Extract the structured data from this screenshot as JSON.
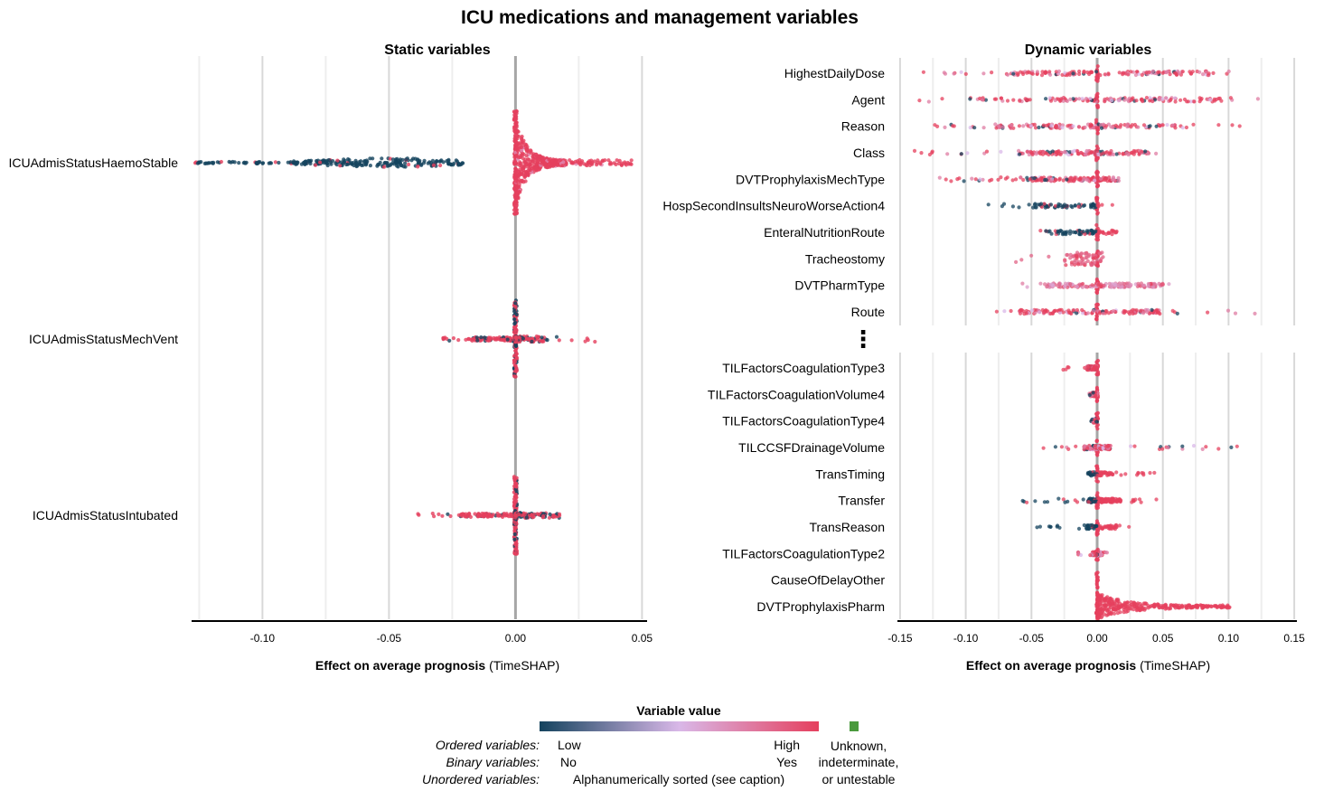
{
  "title": "ICU medications and management variables",
  "colors": {
    "low": "#14435e",
    "mid": "#d9b8e8",
    "high": "#e5405e",
    "unknown": "#4a9a3d",
    "zero_line": "#a6a6a6",
    "grid": "#e6e6e6"
  },
  "chart_data": [
    {
      "type": "scatter",
      "subtype": "beeswarm",
      "panel_title": "Static variables",
      "xlabel_bold": "Effect on average prognosis",
      "xlabel_rest": "(TimeSHAP)",
      "xlim": [
        -0.128,
        0.052
      ],
      "xticks": [
        -0.1,
        -0.05,
        0.0,
        0.05
      ],
      "xtick_labels": [
        "-0.10",
        "-0.05",
        "0.00",
        "0.05"
      ],
      "minor_grid": [
        -0.125,
        -0.075,
        -0.025,
        0.025
      ],
      "variables": [
        {
          "name": "ICUAdmisStatusHaemoStable",
          "range": [
            -0.127,
            0.046
          ],
          "bulk_neg": [
            -0.09,
            -0.02
          ],
          "bulk_pos": [
            0.0,
            0.02
          ],
          "low_side": "neg",
          "spread": 0.55,
          "stem": 0.6
        },
        {
          "name": "ICUAdmisStatusMechVent",
          "range": [
            -0.029,
            0.033
          ],
          "bulk_neg": [
            -0.018,
            0.0
          ],
          "bulk_pos": [
            0.0,
            0.012
          ],
          "low_side": "pos",
          "spread": 0.08,
          "stem": 0.45
        },
        {
          "name": "ICUAdmisStatusIntubated",
          "range": [
            -0.04,
            0.018
          ],
          "bulk_neg": [
            -0.022,
            0.0
          ],
          "bulk_pos": [
            0.0,
            0.012
          ],
          "low_side": "pos",
          "spread": 0.08,
          "stem": 0.45
        }
      ]
    },
    {
      "type": "scatter",
      "subtype": "beeswarm",
      "panel_title": "Dynamic variables",
      "xlabel_bold": "Effect on average prognosis",
      "xlabel_rest": "(TimeSHAP)",
      "xlim": [
        -0.152,
        0.152
      ],
      "xticks": [
        -0.15,
        -0.1,
        -0.05,
        0.0,
        0.05,
        0.1,
        0.15
      ],
      "xtick_labels": [
        "-0.15",
        "-0.10",
        "-0.05",
        "0.00",
        "0.05",
        "0.10",
        "0.15"
      ],
      "minor_grid": [
        -0.125,
        -0.075,
        -0.025,
        0.025,
        0.075,
        0.125
      ],
      "ellipsis": "⋮",
      "top_variables": [
        {
          "name": "HighestDailyDose",
          "range": [
            -0.145,
            0.11
          ],
          "bulk": [
            -0.07,
            0.09
          ]
        },
        {
          "name": "Agent",
          "range": [
            -0.14,
            0.138
          ],
          "bulk": [
            -0.09,
            0.095
          ]
        },
        {
          "name": "Reason",
          "range": [
            -0.13,
            0.115
          ],
          "bulk": [
            -0.08,
            0.06
          ]
        },
        {
          "name": "Class",
          "range": [
            -0.145,
            0.045
          ],
          "bulk": [
            -0.06,
            0.04
          ]
        },
        {
          "name": "DVTProphylaxisMechType",
          "range": [
            -0.12,
            0.025
          ],
          "bulk": [
            -0.05,
            0.02
          ]
        },
        {
          "name": "HospSecondInsultsNeuroWorseAction4",
          "range": [
            -0.085,
            0.012
          ],
          "bulk": [
            -0.05,
            0.005
          ]
        },
        {
          "name": "EnteralNutritionRoute",
          "range": [
            -0.05,
            0.018
          ],
          "bulk": [
            -0.035,
            0.015
          ]
        },
        {
          "name": "Tracheostomy",
          "range": [
            -0.065,
            0.005
          ],
          "bulk": [
            -0.025,
            0.004
          ]
        },
        {
          "name": "DVTPharmType",
          "range": [
            -0.06,
            0.06
          ],
          "bulk": [
            -0.04,
            0.05
          ]
        },
        {
          "name": "Route",
          "range": [
            -0.08,
            0.13
          ],
          "bulk": [
            -0.06,
            0.05
          ]
        }
      ],
      "bottom_variables": [
        {
          "name": "TILFactorsCoagulationType3",
          "range": [
            -0.027,
            0.0
          ],
          "bulk": [
            -0.008,
            0.0
          ]
        },
        {
          "name": "TILFactorsCoagulationVolume4",
          "range": [
            -0.006,
            0.0
          ],
          "bulk": [
            -0.004,
            0.0
          ]
        },
        {
          "name": "TILFactorsCoagulationType4",
          "range": [
            -0.005,
            0.0
          ],
          "bulk": [
            -0.003,
            0.0
          ]
        },
        {
          "name": "TILCCSFDrainageVolume",
          "range": [
            -0.057,
            0.12
          ],
          "bulk": [
            -0.01,
            0.01
          ]
        },
        {
          "name": "TransTiming",
          "range": [
            -0.007,
            0.047
          ],
          "bulk": [
            -0.007,
            0.012
          ]
        },
        {
          "name": "Transfer",
          "range": [
            -0.063,
            0.05
          ],
          "bulk": [
            -0.007,
            0.018
          ]
        },
        {
          "name": "TransReason",
          "range": [
            -0.052,
            0.028
          ],
          "bulk": [
            -0.01,
            0.015
          ]
        },
        {
          "name": "TILFactorsCoagulationType2",
          "range": [
            -0.017,
            0.012
          ],
          "bulk": [
            -0.004,
            0.004
          ]
        },
        {
          "name": "CauseOfDelayOther",
          "range": [
            0.0,
            0.0
          ],
          "bulk": [
            0.0,
            0.0
          ]
        },
        {
          "name": "DVTProphylaxisPharm",
          "range": [
            0.0,
            0.101
          ],
          "bulk": [
            0.0,
            0.045
          ]
        }
      ]
    }
  ],
  "legend": {
    "title": "Variable value",
    "rows": [
      {
        "label": "Ordered variables:",
        "left": "Low",
        "right": "High"
      },
      {
        "label": "Binary variables:",
        "left": "No",
        "right": "Yes"
      },
      {
        "label": "Unordered variables:",
        "center": "Alphanumerically sorted (see caption)"
      }
    ],
    "unknown_lines": [
      "Unknown,",
      "indeterminate,",
      "or untestable"
    ]
  }
}
